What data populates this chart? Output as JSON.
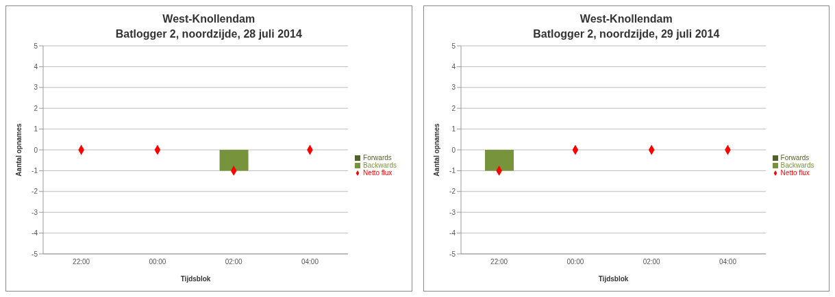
{
  "chart_data": [
    {
      "type": "bar",
      "title": "West-Knollendam",
      "subtitle": "Batlogger 2, noordzijde, 28 juli 2014",
      "xlabel": "Tijdsblok",
      "ylabel": "Aantal opnames",
      "categories": [
        "22:00",
        "00:00",
        "02:00",
        "04:00"
      ],
      "stacked": true,
      "series": [
        {
          "name": "Forwards",
          "color": "#4f6228",
          "values": [
            0,
            0,
            0,
            0
          ]
        },
        {
          "name": "Backwards",
          "color": "#77933c",
          "values": [
            0,
            0,
            -1,
            0
          ]
        },
        {
          "name": "Netto flux",
          "type": "scatter",
          "color": "#ff0000",
          "values": [
            0,
            0,
            -1,
            0
          ]
        }
      ],
      "ylim": [
        -5,
        5
      ],
      "yticks": [
        -5,
        -4,
        -3,
        -2,
        -1,
        0,
        1,
        2,
        3,
        4,
        5
      ],
      "grid": "y",
      "legend": "right",
      "marker": "diamond"
    },
    {
      "type": "bar",
      "title": "West-Knollendam",
      "subtitle": "Batlogger 2, noordzijde, 29 juli 2014",
      "xlabel": "Tijdsblok",
      "ylabel": "Aantal opnames",
      "categories": [
        "22:00",
        "00:00",
        "02:00",
        "04:00"
      ],
      "stacked": true,
      "series": [
        {
          "name": "Forwards",
          "color": "#4f6228",
          "values": [
            0,
            0,
            0,
            0
          ]
        },
        {
          "name": "Backwards",
          "color": "#77933c",
          "values": [
            -1,
            0,
            0,
            0
          ]
        },
        {
          "name": "Netto flux",
          "type": "scatter",
          "color": "#ff0000",
          "values": [
            -1,
            0,
            0,
            0
          ]
        }
      ],
      "ylim": [
        -5,
        5
      ],
      "yticks": [
        -5,
        -4,
        -3,
        -2,
        -1,
        0,
        1,
        2,
        3,
        4,
        5
      ],
      "grid": "y",
      "legend": "right",
      "marker": "diamond"
    }
  ]
}
